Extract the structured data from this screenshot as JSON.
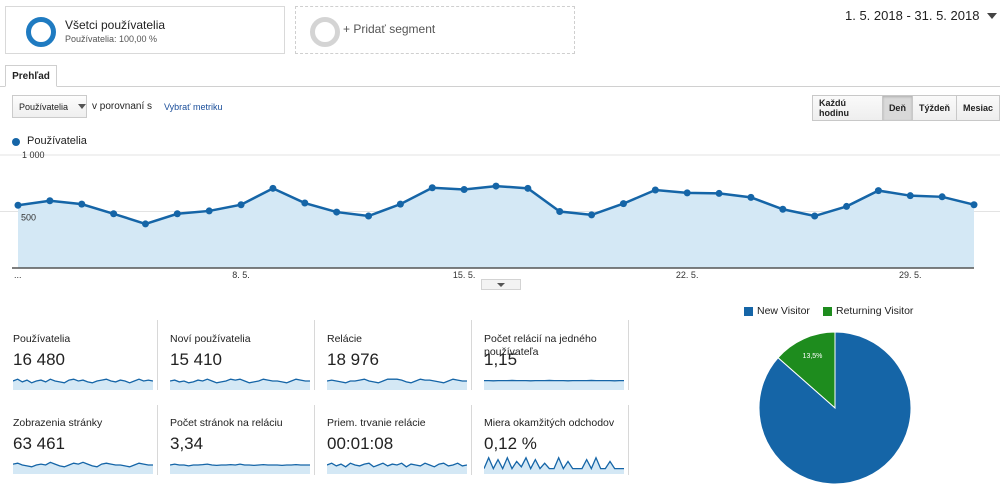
{
  "segments": {
    "active": {
      "title": "Všetci používatelia",
      "subtitle": "Používatelia: 100,00 %"
    },
    "add_label": "+ Pridať segment"
  },
  "date_range": "1. 5. 2018 - 31. 5. 2018",
  "tabs": [
    {
      "label": "Prehľad",
      "active": true
    }
  ],
  "controls": {
    "metric_select": "Používatelia",
    "compare_label": "v porovnaní s",
    "choose_metric": "Vybrať metriku",
    "periods": [
      {
        "label": "Každú hodinu",
        "active": false
      },
      {
        "label": "Deň",
        "active": true
      },
      {
        "label": "Týždeň",
        "active": false
      },
      {
        "label": "Mesiac",
        "active": false
      }
    ]
  },
  "colors": {
    "accent": "#1565a7",
    "area": "#d4e8f5",
    "green": "#1e8c1e"
  },
  "chart_data": [
    {
      "type": "area",
      "series": [
        {
          "name": "Používatelia",
          "values": [
            555,
            595,
            565,
            480,
            390,
            480,
            505,
            560,
            705,
            575,
            495,
            460,
            565,
            710,
            695,
            725,
            705,
            500,
            470,
            570,
            690,
            665,
            660,
            625,
            520,
            460,
            545,
            685,
            640,
            630,
            560
          ]
        }
      ],
      "x": [
        "1. 5.",
        "2. 5.",
        "3. 5.",
        "4. 5.",
        "5. 5.",
        "6. 5.",
        "7. 5.",
        "8. 5.",
        "9. 5.",
        "10. 5.",
        "11. 5.",
        "12. 5.",
        "13. 5.",
        "14. 5.",
        "15. 5.",
        "16. 5.",
        "17. 5.",
        "18. 5.",
        "19. 5.",
        "20. 5.",
        "21. 5.",
        "22. 5.",
        "23. 5.",
        "24. 5.",
        "25. 5.",
        "26. 5.",
        "27. 5.",
        "28. 5.",
        "29. 5.",
        "30. 5.",
        "31. 5."
      ],
      "x_tick_labels": [
        "...",
        "8. 5.",
        "15. 5.",
        "22. 5.",
        "29. 5."
      ],
      "y_tick_labels": [
        "1 000",
        "500"
      ],
      "ylim": [
        0,
        1000
      ],
      "grid": true
    },
    {
      "type": "pie",
      "series": [
        {
          "name": "New Visitor",
          "value": 86.5,
          "label": "86,5%",
          "color": "#1565a7"
        },
        {
          "name": "Returning Visitor",
          "value": 13.5,
          "label": "13,5%",
          "color": "#1e8c1e"
        }
      ],
      "legend": "top"
    }
  ],
  "scorecards": [
    {
      "label": "Používatelia",
      "value": "16 480",
      "spark": [
        0.5,
        0.6,
        0.45,
        0.55,
        0.4,
        0.5,
        0.55,
        0.45,
        0.6,
        0.5,
        0.45,
        0.4,
        0.55,
        0.6,
        0.5,
        0.55,
        0.45,
        0.4,
        0.5,
        0.55,
        0.6,
        0.5,
        0.45,
        0.55,
        0.5,
        0.4,
        0.5,
        0.6,
        0.5,
        0.55,
        0.5
      ]
    },
    {
      "label": "Noví používatelia",
      "value": "15 410",
      "spark": [
        0.5,
        0.55,
        0.45,
        0.5,
        0.4,
        0.45,
        0.55,
        0.5,
        0.6,
        0.5,
        0.4,
        0.45,
        0.5,
        0.6,
        0.55,
        0.6,
        0.5,
        0.4,
        0.45,
        0.5,
        0.6,
        0.55,
        0.5,
        0.5,
        0.45,
        0.4,
        0.5,
        0.6,
        0.55,
        0.5,
        0.5
      ]
    },
    {
      "label": "Relácie",
      "value": "18 976",
      "spark": [
        0.5,
        0.55,
        0.5,
        0.45,
        0.4,
        0.5,
        0.5,
        0.55,
        0.6,
        0.5,
        0.45,
        0.4,
        0.5,
        0.6,
        0.6,
        0.6,
        0.55,
        0.45,
        0.4,
        0.5,
        0.6,
        0.55,
        0.55,
        0.5,
        0.45,
        0.4,
        0.5,
        0.6,
        0.55,
        0.5,
        0.5
      ]
    },
    {
      "label": "Počet relácií na jedného používateľa",
      "value": "1,15",
      "spark": [
        0.52,
        0.52,
        0.51,
        0.52,
        0.52,
        0.52,
        0.53,
        0.52,
        0.52,
        0.52,
        0.51,
        0.52,
        0.52,
        0.52,
        0.53,
        0.52,
        0.52,
        0.52,
        0.51,
        0.52,
        0.52,
        0.52,
        0.52,
        0.53,
        0.52,
        0.52,
        0.52,
        0.52,
        0.51,
        0.52,
        0.52
      ]
    },
    {
      "label": "Zobrazenia stránky",
      "value": "63 461",
      "spark": [
        0.55,
        0.6,
        0.5,
        0.45,
        0.4,
        0.5,
        0.55,
        0.5,
        0.65,
        0.55,
        0.45,
        0.4,
        0.5,
        0.6,
        0.55,
        0.65,
        0.55,
        0.45,
        0.4,
        0.55,
        0.6,
        0.55,
        0.5,
        0.5,
        0.45,
        0.4,
        0.5,
        0.6,
        0.55,
        0.5,
        0.5
      ]
    },
    {
      "label": "Počet stránok na reláciu",
      "value": "3,34",
      "spark": [
        0.5,
        0.55,
        0.5,
        0.5,
        0.45,
        0.5,
        0.5,
        0.52,
        0.55,
        0.5,
        0.48,
        0.5,
        0.5,
        0.52,
        0.5,
        0.55,
        0.5,
        0.5,
        0.48,
        0.5,
        0.52,
        0.5,
        0.5,
        0.5,
        0.48,
        0.5,
        0.5,
        0.52,
        0.5,
        0.5,
        0.5
      ]
    },
    {
      "label": "Priem. trvanie relácie",
      "value": "00:01:08",
      "spark": [
        0.5,
        0.6,
        0.45,
        0.55,
        0.4,
        0.6,
        0.5,
        0.45,
        0.55,
        0.6,
        0.4,
        0.5,
        0.6,
        0.45,
        0.55,
        0.5,
        0.6,
        0.4,
        0.55,
        0.5,
        0.45,
        0.6,
        0.5,
        0.4,
        0.55,
        0.6,
        0.45,
        0.5,
        0.6,
        0.45,
        0.5
      ]
    },
    {
      "label": "Miera okamžitých odchodov",
      "value": "0,12 %",
      "spark": [
        0.3,
        0.9,
        0.3,
        0.8,
        0.3,
        0.9,
        0.3,
        0.7,
        0.4,
        0.9,
        0.3,
        0.8,
        0.3,
        0.6,
        0.3,
        0.3,
        0.9,
        0.3,
        0.7,
        0.3,
        0.3,
        0.3,
        0.8,
        0.3,
        0.9,
        0.3,
        0.3,
        0.7,
        0.3,
        0.3,
        0.3
      ]
    }
  ]
}
